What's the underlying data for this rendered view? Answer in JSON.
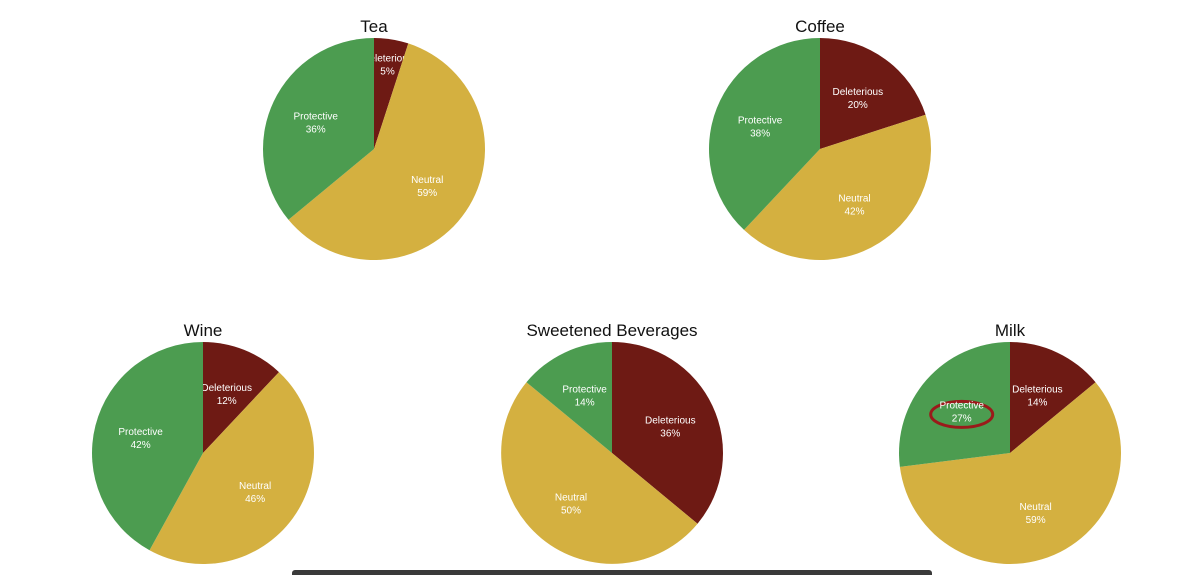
{
  "colors": {
    "deleterious": "#6e1a14",
    "neutral": "#d4b040",
    "protective": "#4c9c50",
    "highlight": "#9a1a1a"
  },
  "chart_data": [
    {
      "type": "pie",
      "title": "Tea",
      "slices": [
        {
          "label": "Deleterious",
          "value": 5,
          "display": "5%"
        },
        {
          "label": "Neutral",
          "value": 59,
          "display": "59%"
        },
        {
          "label": "Protective",
          "value": 36,
          "display": "36%"
        }
      ]
    },
    {
      "type": "pie",
      "title": "Coffee",
      "slices": [
        {
          "label": "Deleterious",
          "value": 20,
          "display": "20%"
        },
        {
          "label": "Neutral",
          "value": 42,
          "display": "42%"
        },
        {
          "label": "Protective",
          "value": 38,
          "display": "38%"
        }
      ]
    },
    {
      "type": "pie",
      "title": "Wine",
      "slices": [
        {
          "label": "Deleterious",
          "value": 12,
          "display": "12%"
        },
        {
          "label": "Neutral",
          "value": 46,
          "display": "46%"
        },
        {
          "label": "Protective",
          "value": 42,
          "display": "42%"
        }
      ]
    },
    {
      "type": "pie",
      "title": "Sweetened Beverages",
      "slices": [
        {
          "label": "Deleterious",
          "value": 36,
          "display": "36%"
        },
        {
          "label": "Neutral",
          "value": 50,
          "display": "50%"
        },
        {
          "label": "Protective",
          "value": 14,
          "display": "14%"
        }
      ]
    },
    {
      "type": "pie",
      "title": "Milk",
      "highlighted_slice": "Protective",
      "slices": [
        {
          "label": "Deleterious",
          "value": 14,
          "display": "14%"
        },
        {
          "label": "Neutral",
          "value": 59,
          "display": "59%"
        },
        {
          "label": "Protective",
          "value": 27,
          "display": "27%"
        }
      ]
    }
  ]
}
